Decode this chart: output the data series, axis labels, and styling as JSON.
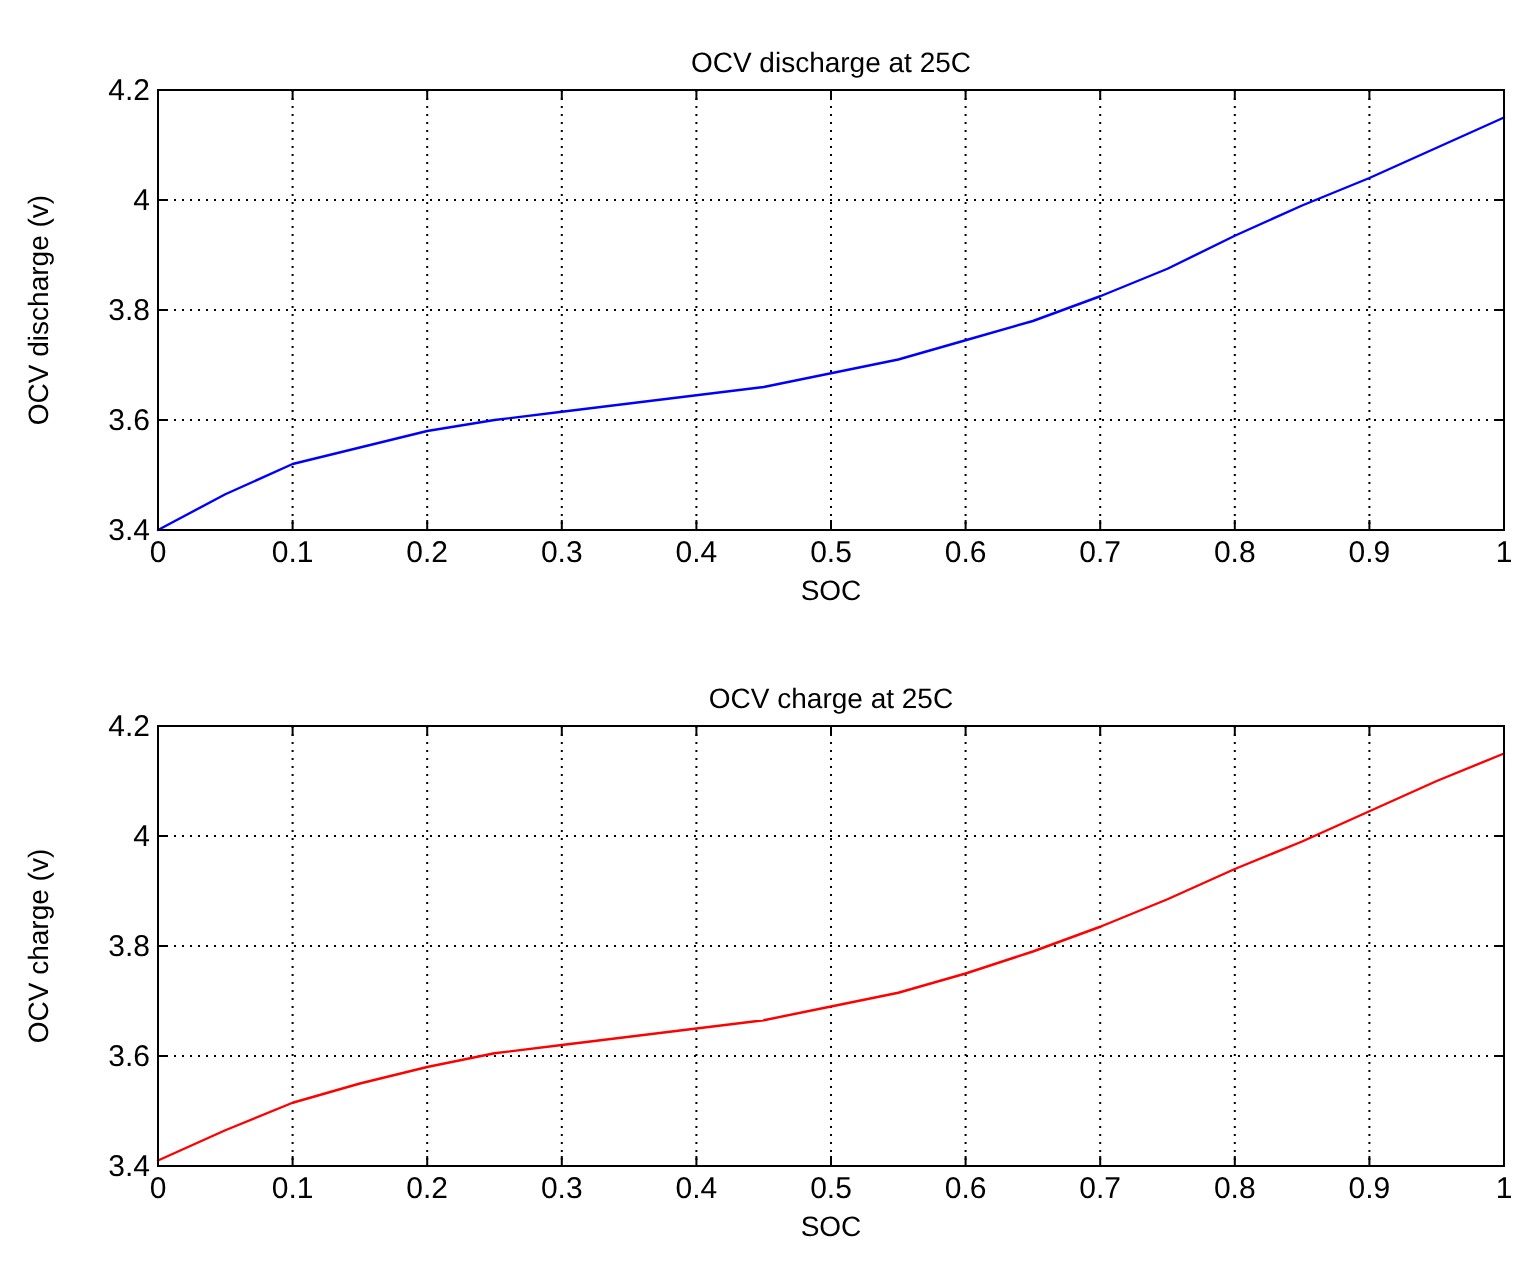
{
  "chart_data": [
    {
      "type": "line",
      "title": "OCV discharge at 25C",
      "xlabel": "SOC",
      "ylabel": "OCV discharge (v)",
      "x": [
        0,
        0.05,
        0.1,
        0.15,
        0.2,
        0.25,
        0.3,
        0.35,
        0.4,
        0.45,
        0.5,
        0.55,
        0.6,
        0.65,
        0.7,
        0.75,
        0.8,
        0.85,
        0.9,
        0.95,
        1
      ],
      "series": [
        {
          "color": "#0000ff",
          "values": [
            3.4,
            3.465,
            3.52,
            3.55,
            3.58,
            3.6,
            3.615,
            3.63,
            3.645,
            3.66,
            3.685,
            3.71,
            3.745,
            3.78,
            3.825,
            3.875,
            3.935,
            3.99,
            4.04,
            4.095,
            4.15
          ]
        }
      ],
      "xlim": [
        0,
        1
      ],
      "xticks": [
        0,
        0.1,
        0.2,
        0.3,
        0.4,
        0.5,
        0.6,
        0.7,
        0.8,
        0.9,
        1
      ],
      "ylim": [
        3.4,
        4.2
      ],
      "yticks": [
        3.4,
        3.6,
        3.8,
        4,
        4.2
      ],
      "grid": true
    },
    {
      "type": "line",
      "title": "OCV charge at 25C",
      "xlabel": "SOC",
      "ylabel": "OCV charge (v)",
      "x": [
        0,
        0.05,
        0.1,
        0.15,
        0.2,
        0.25,
        0.3,
        0.35,
        0.4,
        0.45,
        0.5,
        0.55,
        0.6,
        0.65,
        0.7,
        0.75,
        0.8,
        0.85,
        0.9,
        0.95,
        1
      ],
      "series": [
        {
          "color": "#ff0000",
          "values": [
            3.41,
            3.465,
            3.515,
            3.55,
            3.58,
            3.605,
            3.62,
            3.635,
            3.65,
            3.665,
            3.69,
            3.715,
            3.75,
            3.79,
            3.835,
            3.885,
            3.94,
            3.99,
            4.045,
            4.1,
            4.15
          ]
        }
      ],
      "xlim": [
        0,
        1
      ],
      "xticks": [
        0,
        0.1,
        0.2,
        0.3,
        0.4,
        0.5,
        0.6,
        0.7,
        0.8,
        0.9,
        1
      ],
      "ylim": [
        3.4,
        4.2
      ],
      "yticks": [
        3.4,
        3.6,
        3.8,
        4,
        4.2
      ],
      "grid": true
    }
  ]
}
